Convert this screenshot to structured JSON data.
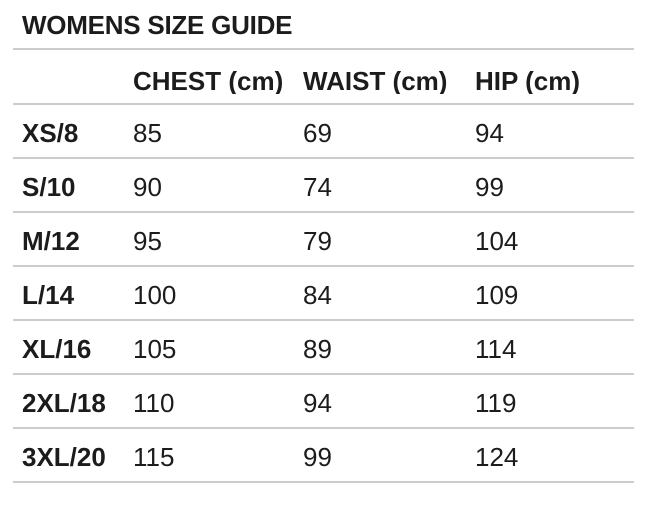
{
  "page": {
    "title": "WOMENS SIZE GUIDE"
  },
  "colors": {
    "text": "#1c1c1c",
    "divider": "#cccccc",
    "background": "#ffffff"
  },
  "table": {
    "columns": [
      {
        "key": "chest",
        "label": "CHEST (cm)"
      },
      {
        "key": "waist",
        "label": "WAIST (cm)"
      },
      {
        "key": "hip",
        "label": "HIP (cm)"
      }
    ],
    "rows": [
      {
        "size": "XS/8",
        "chest": "85",
        "waist": "69",
        "hip": "94"
      },
      {
        "size": "S/10",
        "chest": "90",
        "waist": "74",
        "hip": "99"
      },
      {
        "size": "M/12",
        "chest": "95",
        "waist": "79",
        "hip": "104"
      },
      {
        "size": "L/14",
        "chest": "100",
        "waist": "84",
        "hip": "109"
      },
      {
        "size": "XL/16",
        "chest": "105",
        "waist": "89",
        "hip": "114"
      },
      {
        "size": "2XL/18",
        "chest": "110",
        "waist": "94",
        "hip": "119"
      },
      {
        "size": "3XL/20",
        "chest": "115",
        "waist": "99",
        "hip": "124"
      }
    ]
  }
}
